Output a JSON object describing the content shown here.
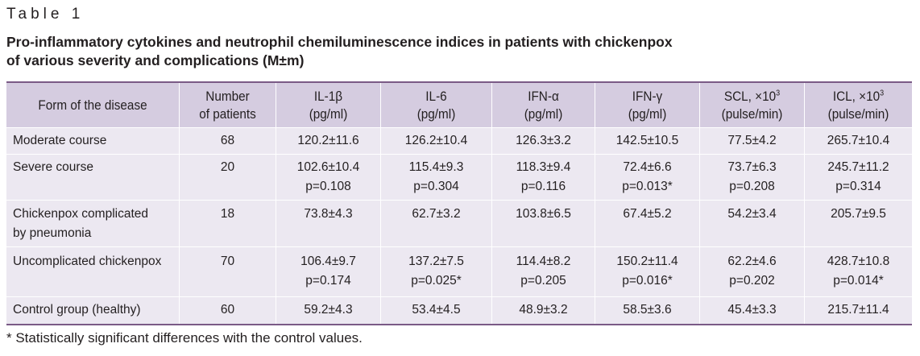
{
  "table_label": "Table 1",
  "caption": {
    "line1": "Pro-inflammatory cytokines and neutrophil chemiluminescence indices in patients with chickenpox",
    "line2": "of various severity and complications (M±m)"
  },
  "headers": {
    "form": "Form of the disease",
    "number": [
      "Number",
      "of patients"
    ],
    "il1b": [
      "IL-1β",
      "(pg/ml)"
    ],
    "il6": [
      "IL-6",
      "(pg/ml)"
    ],
    "ifna": [
      "IFN-α",
      "(pg/ml)"
    ],
    "ifng": [
      "IFN-γ",
      "(pg/ml)"
    ],
    "scl": [
      "SCL, ×10",
      "3",
      "(pulse/min)"
    ],
    "icl": [
      "ICL, ×10",
      "3",
      "(pulse/min)"
    ]
  },
  "rows": [
    {
      "form": [
        "Moderate course"
      ],
      "n": "68",
      "il1b": [
        "120.2±11.6"
      ],
      "il6": [
        "126.2±10.4"
      ],
      "ifna": [
        "126.3±3.2"
      ],
      "ifng": [
        "142.5±10.5"
      ],
      "scl": [
        "77.5±4.2"
      ],
      "icl": [
        "265.7±10.4"
      ]
    },
    {
      "form": [
        "Severe course"
      ],
      "n": "20",
      "il1b": [
        "102.6±10.4",
        "p=0.108"
      ],
      "il6": [
        "115.4±9.3",
        "p=0.304"
      ],
      "ifna": [
        "118.3±9.4",
        "p=0.116"
      ],
      "ifng": [
        "72.4±6.6",
        "p=0.013*"
      ],
      "scl": [
        "73.7±6.3",
        "p=0.208"
      ],
      "icl": [
        "245.7±11.2",
        "p=0.314"
      ]
    },
    {
      "form": [
        "Chickenpox complicated",
        "by pneumonia"
      ],
      "n": "18",
      "il1b": [
        "73.8±4.3"
      ],
      "il6": [
        "62.7±3.2"
      ],
      "ifna": [
        "103.8±6.5"
      ],
      "ifng": [
        "67.4±5.2"
      ],
      "scl": [
        "54.2±3.4"
      ],
      "icl": [
        "205.7±9.5"
      ]
    },
    {
      "form": [
        "Uncomplicated chickenpox"
      ],
      "n": "70",
      "il1b": [
        "106.4±9.7",
        "p=0.174"
      ],
      "il6": [
        "137.2±7.5",
        "p=0.025*"
      ],
      "ifna": [
        "114.4±8.2",
        "p=0.205"
      ],
      "ifng": [
        "150.2±11.4",
        "p=0.016*"
      ],
      "scl": [
        "62.2±4.6",
        "p=0.202"
      ],
      "icl": [
        "428.7±10.8",
        "p=0.014*"
      ]
    },
    {
      "form": [
        "Control group (healthy)"
      ],
      "n": "60",
      "il1b": [
        "59.2±4.3"
      ],
      "il6": [
        "53.4±4.5"
      ],
      "ifna": [
        "48.9±3.2"
      ],
      "ifng": [
        "58.5±3.6"
      ],
      "scl": [
        "45.4±3.3"
      ],
      "icl": [
        "215.7±11.4"
      ]
    }
  ],
  "footnote": "* Statistically significant differences with the control values."
}
